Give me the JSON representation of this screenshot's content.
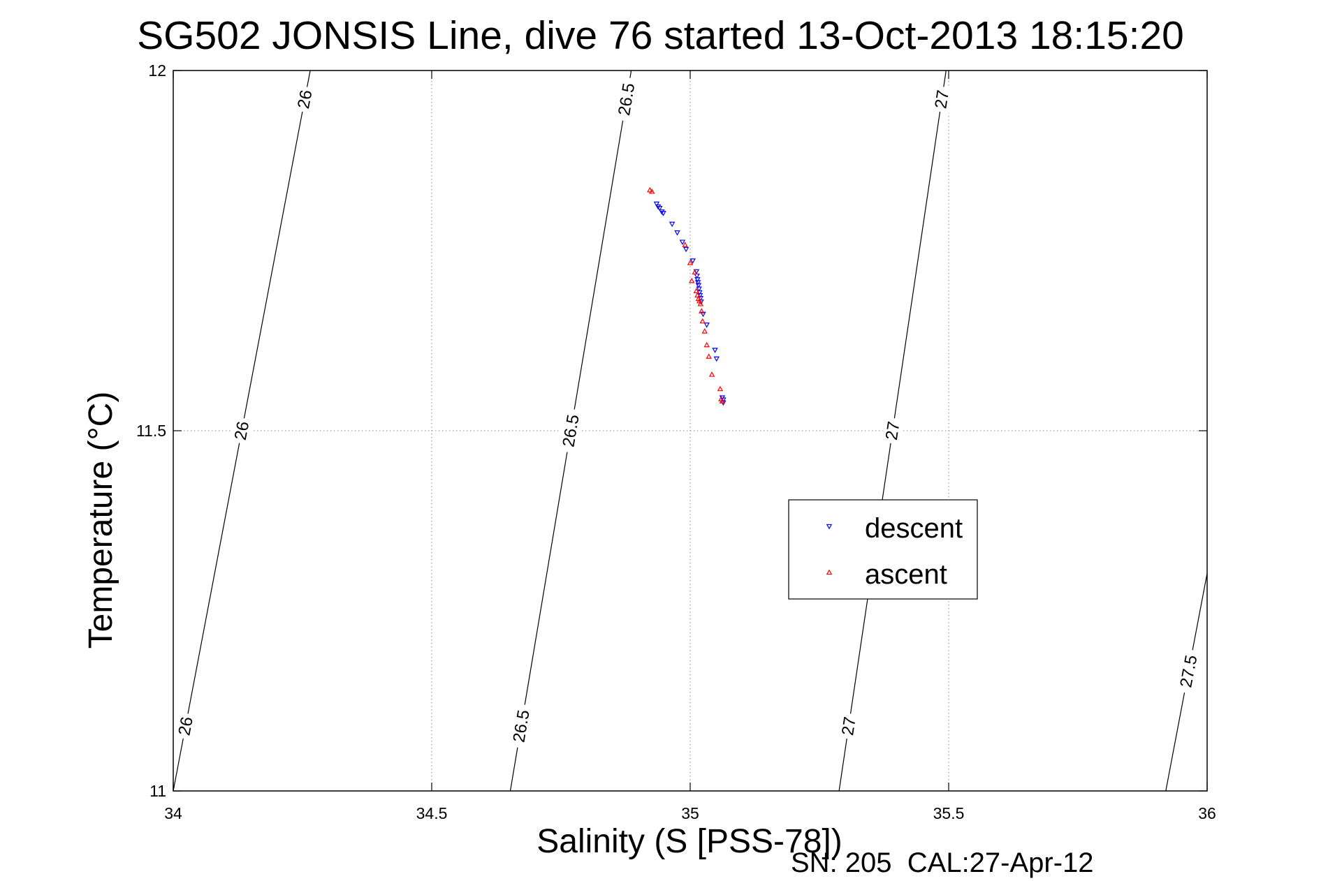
{
  "chart_data": {
    "type": "scatter",
    "title": "SG502 JONSIS Line, dive 76 started 13-Oct-2013 18:15:20",
    "xlabel": "Salinity (S [PSS-78])",
    "ylabel": "Temperature (°C)",
    "xlim": [
      34,
      36
    ],
    "ylim": [
      11,
      12
    ],
    "xticks": [
      "34",
      "34.5",
      "35",
      "35.5",
      "36"
    ],
    "yticks": [
      "11",
      "11.5",
      "12"
    ],
    "grid": true,
    "legend_position": "inside-right",
    "series": [
      {
        "name": "descent",
        "marker": "triangle-down",
        "color": "#0000ff",
        "points": [
          [
            34.935,
            11.815
          ],
          [
            34.938,
            11.811
          ],
          [
            34.941,
            11.809
          ],
          [
            34.945,
            11.804
          ],
          [
            34.948,
            11.802
          ],
          [
            34.965,
            11.787
          ],
          [
            34.975,
            11.775
          ],
          [
            34.985,
            11.762
          ],
          [
            34.992,
            11.752
          ],
          [
            35.005,
            11.736
          ],
          [
            35.012,
            11.721
          ],
          [
            35.013,
            11.715
          ],
          [
            35.014,
            11.71
          ],
          [
            35.015,
            11.706
          ],
          [
            35.016,
            11.702
          ],
          [
            35.017,
            11.697
          ],
          [
            35.018,
            11.692
          ],
          [
            35.019,
            11.688
          ],
          [
            35.02,
            11.684
          ],
          [
            35.021,
            11.679
          ],
          [
            35.025,
            11.662
          ],
          [
            35.032,
            11.647
          ],
          [
            35.048,
            11.612
          ],
          [
            35.051,
            11.6
          ],
          [
            35.062,
            11.546
          ],
          [
            35.064,
            11.543
          ],
          [
            35.064,
            11.539
          ]
        ]
      },
      {
        "name": "ascent",
        "marker": "triangle-up",
        "color": "#ff0000",
        "points": [
          [
            34.922,
            11.834
          ],
          [
            34.926,
            11.832
          ],
          [
            34.99,
            11.758
          ],
          [
            35.0,
            11.733
          ],
          [
            35.009,
            11.72
          ],
          [
            35.003,
            11.708
          ],
          [
            35.012,
            11.694
          ],
          [
            35.014,
            11.688
          ],
          [
            35.016,
            11.683
          ],
          [
            35.018,
            11.68
          ],
          [
            35.02,
            11.676
          ],
          [
            35.022,
            11.666
          ],
          [
            35.024,
            11.652
          ],
          [
            35.028,
            11.638
          ],
          [
            35.032,
            11.619
          ],
          [
            35.036,
            11.603
          ],
          [
            35.042,
            11.578
          ],
          [
            35.058,
            11.558
          ],
          [
            35.06,
            11.544
          ],
          [
            35.062,
            11.541
          ]
        ]
      }
    ],
    "contours": [
      {
        "label": "26",
        "x_at_ymin": 34.0,
        "x_at_ymax": 34.265
      },
      {
        "label": "26.5",
        "x_at_ymin": 34.652,
        "x_at_ymax": 34.886
      },
      {
        "label": "27",
        "x_at_ymin": 35.288,
        "x_at_ymax": 35.495
      },
      {
        "label": "27.5",
        "x_at_ymin": 35.92,
        "x_at_ymax": 36.0,
        "y_at_xmax": 11.302
      }
    ]
  },
  "footer": "SN: 205  CAL:27-Apr-12"
}
